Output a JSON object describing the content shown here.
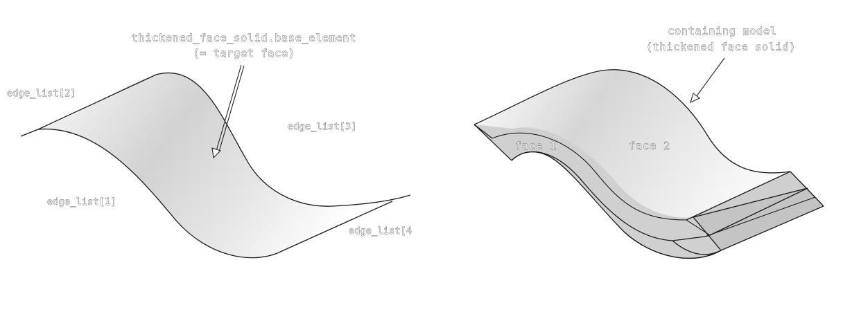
{
  "left_figure": {
    "callout_line1": "thickened_face_solid.base_element",
    "callout_line2": "(= target face)",
    "edge_labels": {
      "edge2": "edge_list[2]",
      "edge3": "edge_list[3]",
      "edge1": "edge_list[1]",
      "edge4": "edge_list[4"
    }
  },
  "right_figure": {
    "callout_line1": "containing model",
    "callout_line2": "(thickened face solid)",
    "face_labels": {
      "face1": "face 1",
      "face2": "face 2"
    }
  },
  "colors": {
    "surface_light": "#fafafa",
    "surface_mid": "#d4d4d4",
    "side_face": "#c9c9c9",
    "outline": "#1a1a1a"
  }
}
